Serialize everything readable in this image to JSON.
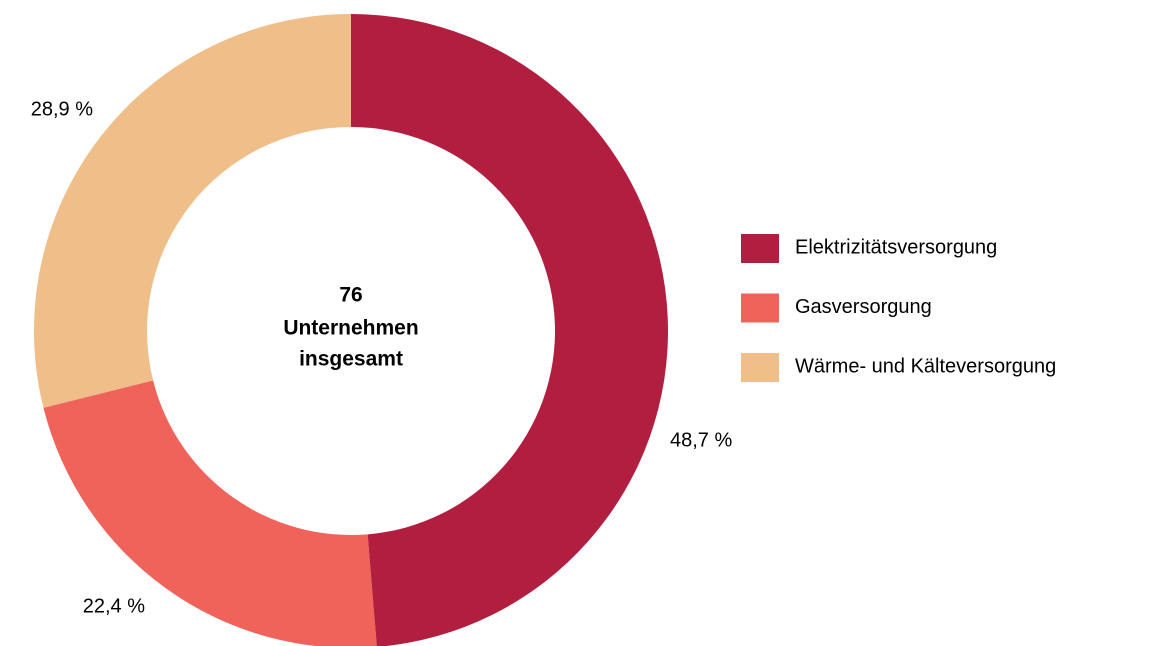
{
  "chart_data": {
    "type": "donut",
    "categories": [
      "Elektrizitätsversorgung",
      "Gasversorgung",
      "Wärme- und Kälteversorgung"
    ],
    "values": [
      48.7,
      22.4,
      28.9
    ],
    "value_labels": [
      "48,7 %",
      "22,4 %",
      "28,9 %"
    ],
    "colors": [
      "#b21e3f",
      "#ef635a",
      "#f0be89"
    ],
    "total": 76,
    "center_text": [
      "Unternehmen",
      "insgesamt"
    ],
    "legend": "right"
  }
}
